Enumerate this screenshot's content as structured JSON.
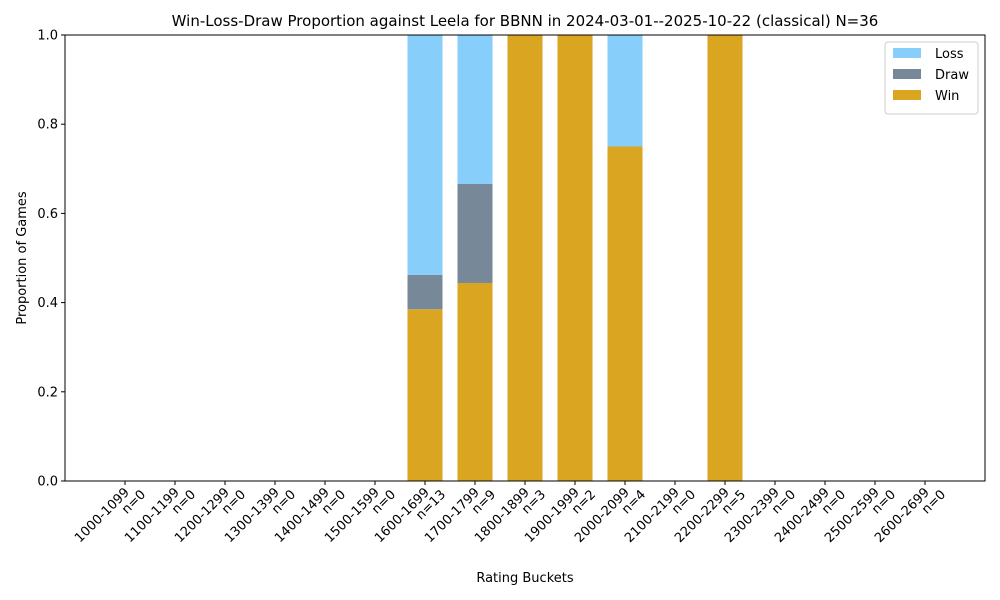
{
  "chart_data": {
    "type": "bar",
    "stacked": true,
    "title": "Win-Loss-Draw Proportion against Leela for BBNN in 2024-03-01--2025-10-22 (classical) N=36",
    "xlabel": "Rating Buckets",
    "ylabel": "Proportion of Games",
    "ylim": [
      0,
      1
    ],
    "yticks": [
      "0.0",
      "0.2",
      "0.4",
      "0.6",
      "0.8",
      "1.0"
    ],
    "grid": false,
    "legend_position": "top-right",
    "categories": [
      {
        "range": "1000-1099",
        "n": "n=0"
      },
      {
        "range": "1100-1199",
        "n": "n=0"
      },
      {
        "range": "1200-1299",
        "n": "n=0"
      },
      {
        "range": "1300-1399",
        "n": "n=0"
      },
      {
        "range": "1400-1499",
        "n": "n=0"
      },
      {
        "range": "1500-1599",
        "n": "n=0"
      },
      {
        "range": "1600-1699",
        "n": "n=13"
      },
      {
        "range": "1700-1799",
        "n": "n=9"
      },
      {
        "range": "1800-1899",
        "n": "n=3"
      },
      {
        "range": "1900-1999",
        "n": "n=2"
      },
      {
        "range": "2000-2099",
        "n": "n=4"
      },
      {
        "range": "2100-2199",
        "n": "n=0"
      },
      {
        "range": "2200-2299",
        "n": "n=5"
      },
      {
        "range": "2300-2399",
        "n": "n=0"
      },
      {
        "range": "2400-2499",
        "n": "n=0"
      },
      {
        "range": "2500-2599",
        "n": "n=0"
      },
      {
        "range": "2600-2699",
        "n": "n=0"
      }
    ],
    "series": [
      {
        "name": "Win",
        "color": "#daa520",
        "values": [
          0,
          0,
          0,
          0,
          0,
          0,
          0.385,
          0.444,
          1,
          1,
          0.75,
          0,
          1,
          0,
          0,
          0,
          0
        ]
      },
      {
        "name": "Draw",
        "color": "#778899",
        "values": [
          0,
          0,
          0,
          0,
          0,
          0,
          0.077,
          0.222,
          0,
          0,
          0,
          0,
          0,
          0,
          0,
          0,
          0
        ]
      },
      {
        "name": "Loss",
        "color": "#87cefa",
        "values": [
          0,
          0,
          0,
          0,
          0,
          0,
          0.538,
          0.333,
          0,
          0,
          0.25,
          0,
          0,
          0,
          0,
          0,
          0
        ]
      }
    ],
    "legend_order": [
      "Loss",
      "Draw",
      "Win"
    ]
  }
}
